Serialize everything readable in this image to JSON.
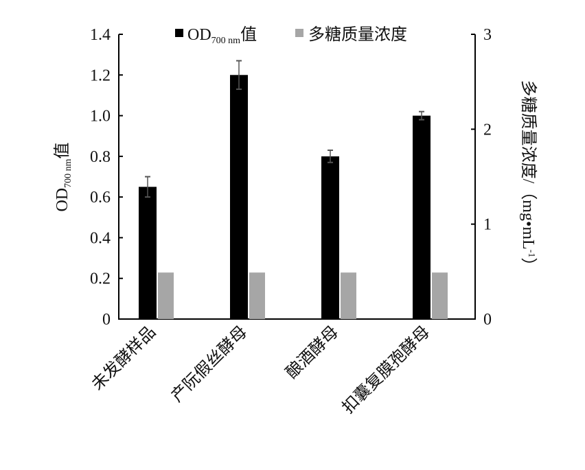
{
  "chart_data": {
    "type": "bar",
    "categories": [
      "未发酵样品",
      "产阮假丝酵母",
      "酿酒酵母",
      "扣囊复膜孢酵母"
    ],
    "series": [
      {
        "name": "OD700 nm值",
        "name_main": "OD",
        "name_sub": "700 nm",
        "name_suffix": "值",
        "axis": "left",
        "color": "#000000",
        "values": [
          0.65,
          1.2,
          0.8,
          1.0
        ],
        "errors": [
          0.05,
          0.07,
          0.03,
          0.02
        ]
      },
      {
        "name": "多糖质量浓度",
        "axis": "right",
        "color": "#a6a6a6",
        "values": [
          0.49,
          0.49,
          0.49,
          0.49
        ]
      }
    ],
    "ylabel": {
      "main": "OD",
      "sub": "700 nm",
      "suffix": "值"
    },
    "y2label": {
      "main": "多糖质量浓度/（mg•mL",
      "sup": "-1",
      "suffix": "）"
    },
    "ylim": [
      0,
      1.4
    ],
    "y2lim": [
      0,
      3
    ],
    "yticks": [
      "0",
      "0.2",
      "0.4",
      "0.6",
      "0.8",
      "1.0",
      "1.2",
      "1.4"
    ],
    "y2ticks": [
      "0",
      "1",
      "2",
      "3"
    ],
    "legend_position": "top-center",
    "grid": false
  }
}
